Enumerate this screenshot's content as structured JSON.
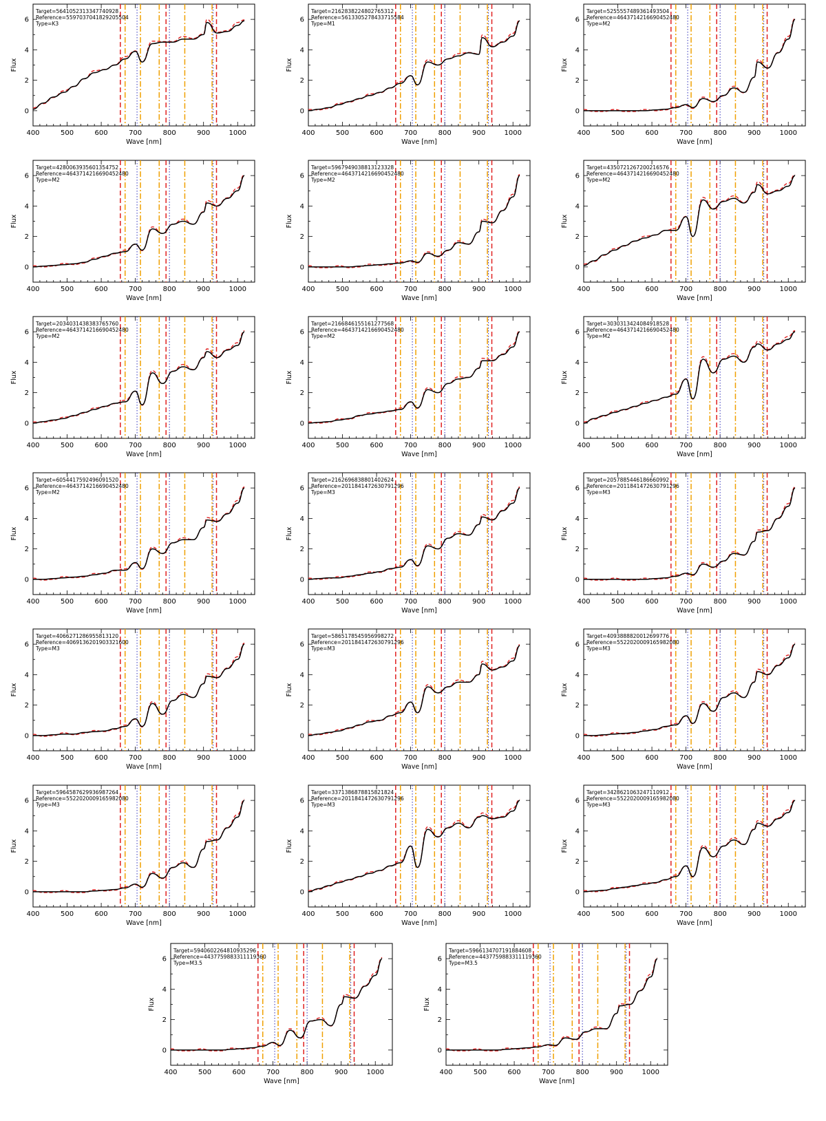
{
  "colors": {
    "target_spectrum": "#000000",
    "reference_spectrum": "#e02020",
    "marker_red": "#e02020",
    "marker_orange": "#f0a000",
    "marker_blue": "#4040c0"
  },
  "axes": {
    "xlabel": "Wave [nm]",
    "ylabel": "Flux",
    "xlim": [
      400,
      1050
    ],
    "ylim": [
      -1,
      7
    ],
    "xticks": [
      400,
      500,
      600,
      700,
      800,
      900,
      1000
    ],
    "yticks": [
      0,
      2,
      4,
      6
    ]
  },
  "markers": [
    {
      "x": 656,
      "color": "marker_red",
      "style": "dashed"
    },
    {
      "x": 670,
      "color": "marker_orange",
      "style": "dashdot"
    },
    {
      "x": 705,
      "color": "marker_blue",
      "style": "dotted"
    },
    {
      "x": 715,
      "color": "marker_orange",
      "style": "dashdot"
    },
    {
      "x": 770,
      "color": "marker_orange",
      "style": "dashdot"
    },
    {
      "x": 790,
      "color": "marker_red",
      "style": "dashed"
    },
    {
      "x": 800,
      "color": "marker_blue",
      "style": "dotted"
    },
    {
      "x": 845,
      "color": "marker_orange",
      "style": "dashdot"
    },
    {
      "x": 925,
      "color": "marker_orange",
      "style": "dashdot"
    },
    {
      "x": 928,
      "color": "marker_blue",
      "style": "dotted"
    },
    {
      "x": 938,
      "color": "marker_red",
      "style": "dashed"
    }
  ],
  "chart_data": [
    {
      "type": "line",
      "target_label": "Target=5641052313347740928",
      "reference_label": "Reference=5597037041829205504",
      "type_label": "Type=K3",
      "series": [
        {
          "values": [
            0.1,
            0.5,
            0.9,
            1.2,
            1.6,
            2.1,
            2.5,
            2.7,
            3.0,
            3.4,
            3.9,
            3.2,
            4.4,
            4.5,
            4.5,
            4.7,
            4.7,
            5.0,
            5.8,
            5.1,
            5.2,
            5.6,
            5.9
          ]
        }
      ]
    },
    {
      "type": "line",
      "target_label": "Target=2162838224802765312",
      "reference_label": "Reference=5613305278433715584",
      "type_label": "Type=M1",
      "series": [
        {
          "values": [
            0.0,
            0.1,
            0.2,
            0.4,
            0.6,
            0.8,
            1.0,
            1.2,
            1.5,
            1.8,
            2.3,
            1.7,
            3.2,
            3.0,
            3.4,
            3.6,
            3.8,
            3.7,
            4.8,
            4.2,
            4.5,
            4.9,
            5.9
          ]
        }
      ]
    },
    {
      "type": "line",
      "target_label": "Target=5255557489361493504",
      "reference_label": "Reference=4643714216690452480",
      "type_label": "Type=M2",
      "series": [
        {
          "values": [
            0.0,
            0.0,
            0.0,
            0.0,
            0.0,
            0.0,
            0.0,
            0.05,
            0.1,
            0.2,
            0.4,
            0.2,
            0.8,
            0.6,
            1.0,
            1.5,
            1.2,
            2.2,
            3.2,
            2.8,
            3.8,
            4.7,
            6.0
          ]
        }
      ]
    },
    {
      "type": "line",
      "target_label": "Target=4280063935601354752",
      "reference_label": "Reference=4643714216690452480",
      "type_label": "Type=M2",
      "series": [
        {
          "values": [
            0.0,
            0.05,
            0.1,
            0.15,
            0.2,
            0.3,
            0.5,
            0.7,
            0.9,
            1.0,
            1.5,
            1.1,
            2.5,
            2.2,
            2.8,
            3.0,
            2.8,
            3.6,
            4.2,
            4.0,
            4.5,
            5.0,
            6.0
          ]
        }
      ]
    },
    {
      "type": "line",
      "target_label": "Target=5967949038813123328",
      "reference_label": "Reference=4643714216690452480",
      "type_label": "Type=M2",
      "series": [
        {
          "values": [
            0.0,
            0.0,
            0.0,
            0.0,
            0.0,
            0.05,
            0.1,
            0.15,
            0.2,
            0.25,
            0.4,
            0.3,
            0.9,
            0.7,
            1.1,
            1.6,
            1.5,
            2.3,
            3.0,
            2.9,
            3.7,
            4.6,
            6.0
          ]
        }
      ]
    },
    {
      "type": "line",
      "target_label": "Target=4350721267200216576",
      "reference_label": "Reference=4643714216690452480",
      "type_label": "Type=M2",
      "series": [
        {
          "values": [
            0.1,
            0.4,
            0.8,
            1.1,
            1.4,
            1.7,
            1.9,
            2.1,
            2.4,
            2.4,
            3.3,
            2.0,
            4.4,
            3.8,
            4.3,
            4.5,
            4.2,
            4.9,
            5.4,
            4.8,
            5.0,
            5.3,
            6.0
          ]
        }
      ]
    },
    {
      "type": "line",
      "target_label": "Target=2034031438383765760",
      "reference_label": "Reference=4643714216690452480",
      "type_label": "Type=M2",
      "series": [
        {
          "values": [
            0.0,
            0.1,
            0.2,
            0.3,
            0.5,
            0.7,
            0.9,
            1.1,
            1.3,
            1.4,
            2.1,
            1.2,
            3.3,
            2.6,
            3.4,
            3.7,
            3.5,
            4.3,
            4.7,
            4.3,
            4.8,
            5.1,
            6.0
          ]
        }
      ]
    },
    {
      "type": "line",
      "target_label": "Target=2166846155161277568",
      "reference_label": "Reference=4643714216690452480",
      "type_label": "Type=M2",
      "series": [
        {
          "values": [
            0.0,
            0.05,
            0.1,
            0.2,
            0.3,
            0.5,
            0.6,
            0.7,
            0.8,
            0.9,
            1.4,
            1.0,
            2.2,
            2.0,
            2.6,
            2.9,
            3.0,
            3.6,
            4.1,
            4.1,
            4.5,
            5.0,
            6.0
          ]
        }
      ]
    },
    {
      "type": "line",
      "target_label": "Target=3030313424084918528",
      "reference_label": "Reference=4643714216690452480",
      "type_label": "Type=M2",
      "series": [
        {
          "values": [
            0.0,
            0.3,
            0.5,
            0.7,
            0.9,
            1.1,
            1.3,
            1.5,
            1.7,
            1.9,
            2.9,
            1.6,
            4.2,
            3.3,
            4.2,
            4.4,
            4.0,
            5.0,
            5.2,
            4.8,
            5.2,
            5.5,
            6.0
          ]
        }
      ]
    },
    {
      "type": "line",
      "target_label": "Target=6054417592496091520",
      "reference_label": "Reference=4643714216690452480",
      "type_label": "Type=M2",
      "series": [
        {
          "values": [
            0.0,
            0.0,
            0.05,
            0.1,
            0.15,
            0.2,
            0.3,
            0.4,
            0.6,
            0.6,
            1.1,
            0.7,
            2.0,
            1.7,
            2.4,
            2.6,
            2.6,
            3.4,
            3.9,
            3.8,
            4.3,
            5.0,
            6.0
          ]
        }
      ]
    },
    {
      "type": "line",
      "target_label": "Target=2162696838801402624",
      "reference_label": "Reference=2011841472630791296",
      "type_label": "Type=M3",
      "series": [
        {
          "values": [
            0.0,
            0.05,
            0.1,
            0.1,
            0.2,
            0.3,
            0.4,
            0.5,
            0.7,
            0.8,
            1.3,
            0.9,
            2.2,
            2.0,
            2.7,
            3.0,
            2.9,
            3.6,
            4.1,
            3.9,
            4.5,
            5.0,
            6.0
          ]
        }
      ]
    },
    {
      "type": "line",
      "target_label": "Target=2057885446186660992",
      "reference_label": "Reference=2011841472630791296",
      "type_label": "Type=M3",
      "series": [
        {
          "values": [
            0.0,
            0.0,
            0.0,
            0.0,
            0.0,
            0.0,
            0.0,
            0.05,
            0.1,
            0.2,
            0.4,
            0.3,
            1.0,
            0.8,
            1.2,
            1.7,
            1.6,
            2.5,
            3.1,
            3.2,
            4.0,
            4.8,
            6.0
          ]
        }
      ]
    },
    {
      "type": "line",
      "target_label": "Target=4066271286955813120",
      "reference_label": "Reference=4069136201903321600",
      "type_label": "Type=M3",
      "series": [
        {
          "values": [
            0.0,
            0.0,
            0.05,
            0.1,
            0.1,
            0.2,
            0.25,
            0.3,
            0.45,
            0.6,
            1.1,
            0.6,
            2.1,
            1.4,
            2.3,
            2.7,
            2.5,
            3.4,
            3.9,
            3.8,
            4.4,
            5.0,
            6.0
          ]
        }
      ]
    },
    {
      "type": "line",
      "target_label": "Target=5865178545956998272",
      "reference_label": "Reference=2011841472630791296",
      "type_label": "Type=M3",
      "series": [
        {
          "values": [
            0.0,
            0.1,
            0.2,
            0.3,
            0.5,
            0.7,
            0.9,
            1.0,
            1.3,
            1.5,
            2.2,
            1.5,
            3.2,
            2.8,
            3.2,
            3.5,
            3.5,
            4.0,
            4.7,
            4.3,
            4.5,
            4.9,
            5.9
          ]
        }
      ]
    },
    {
      "type": "line",
      "target_label": "Target=4093888820012699776",
      "reference_label": "Reference=5522020009165982080",
      "type_label": "Type=M3",
      "series": [
        {
          "values": [
            0.0,
            0.0,
            0.05,
            0.1,
            0.15,
            0.2,
            0.3,
            0.4,
            0.6,
            0.7,
            1.3,
            0.8,
            2.1,
            1.6,
            2.5,
            2.8,
            2.5,
            3.5,
            4.2,
            4.0,
            4.6,
            5.1,
            6.0
          ]
        }
      ]
    },
    {
      "type": "line",
      "target_label": "Target=5964587629936987264",
      "reference_label": "Reference=5522020009165982080",
      "type_label": "Type=M3",
      "series": [
        {
          "values": [
            0.0,
            0.0,
            0.0,
            0.0,
            0.0,
            0.0,
            0.05,
            0.1,
            0.15,
            0.25,
            0.5,
            0.3,
            1.2,
            0.9,
            1.6,
            1.9,
            1.6,
            2.8,
            3.3,
            3.4,
            4.2,
            4.9,
            6.0
          ]
        }
      ]
    },
    {
      "type": "line",
      "target_label": "Target=3371386878815821824",
      "reference_label": "Reference=2011841472630791296",
      "type_label": "Type=M3",
      "series": [
        {
          "values": [
            0.0,
            0.2,
            0.4,
            0.6,
            0.8,
            1.0,
            1.2,
            1.4,
            1.7,
            1.9,
            3.0,
            1.6,
            4.1,
            3.6,
            4.2,
            4.5,
            4.2,
            4.9,
            5.0,
            4.8,
            4.9,
            5.3,
            6.0
          ]
        }
      ]
    },
    {
      "type": "line",
      "target_label": "Target=3428621063247110912",
      "reference_label": "Reference=5522020009165982080",
      "type_label": "Type=M3",
      "series": [
        {
          "values": [
            0.0,
            0.05,
            0.1,
            0.2,
            0.3,
            0.4,
            0.5,
            0.6,
            0.8,
            1.0,
            1.7,
            1.0,
            2.9,
            2.3,
            3.0,
            3.4,
            3.1,
            4.1,
            4.5,
            4.3,
            4.8,
            5.2,
            6.0
          ]
        }
      ]
    },
    {
      "type": "line",
      "target_label": "Target=5940602264810935296",
      "reference_label": "Reference=4437759883311119360",
      "type_label": "Type=M3.5",
      "series": [
        {
          "values": [
            0.0,
            0.0,
            0.0,
            0.0,
            0.0,
            0.0,
            0.05,
            0.1,
            0.15,
            0.25,
            0.5,
            0.3,
            1.3,
            0.8,
            1.9,
            2.0,
            1.6,
            3.0,
            3.5,
            3.4,
            4.2,
            4.9,
            6.0
          ]
        }
      ]
    },
    {
      "type": "line",
      "target_label": "Target=5966134707191884608",
      "reference_label": "Reference=4437759883311119360",
      "type_label": "Type=M3.5",
      "series": [
        {
          "values": [
            0.0,
            0.0,
            0.0,
            0.0,
            0.0,
            0.0,
            0.05,
            0.1,
            0.15,
            0.2,
            0.35,
            0.3,
            0.8,
            0.7,
            1.2,
            1.4,
            1.4,
            2.4,
            2.9,
            3.0,
            3.9,
            4.8,
            6.0
          ]
        }
      ]
    }
  ]
}
